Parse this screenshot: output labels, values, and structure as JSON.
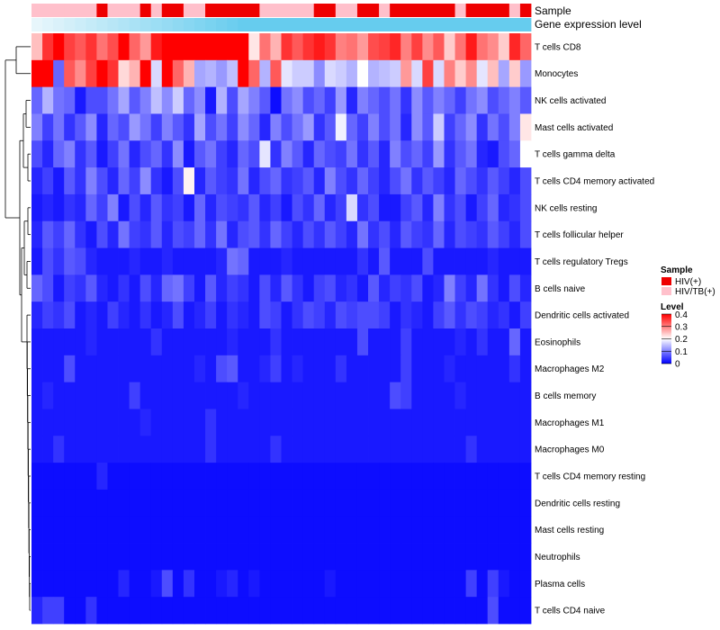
{
  "chart_data": {
    "type": "heatmap",
    "title": "",
    "annotations": [
      {
        "name": "Sample"
      },
      {
        "name": "Gene expression level"
      }
    ],
    "rows": [
      "T cells CD8",
      "Monocytes",
      "NK cells activated",
      "Mast cells activated",
      "T cells gamma delta",
      "T cells CD4 memory activated",
      "NK cells resting",
      "T cells follicular helper",
      "T cells regulatory  Tregs",
      "B cells naive",
      "Dendritic cells activated",
      "Eosinophils",
      "Macrophages M2",
      "B cells memory",
      "Macrophages M1",
      "Macrophages M0",
      "T cells CD4 memory resting",
      "Dendritic cells resting",
      "Mast cells resting",
      "Neutrophils",
      "Plasma cells",
      "T cells CD4 naive"
    ],
    "n_columns": 46,
    "sample_groups": [
      "HIV/TB(+)",
      "HIV/TB(+)",
      "HIV/TB(+)",
      "HIV/TB(+)",
      "HIV/TB(+)",
      "HIV/TB(+)",
      "HIV(+)",
      "HIV/TB(+)",
      "HIV/TB(+)",
      "HIV/TB(+)",
      "HIV(+)",
      "HIV/TB(+)",
      "HIV(+)",
      "HIV(+)",
      "HIV/TB(+)",
      "HIV/TB(+)",
      "HIV(+)",
      "HIV(+)",
      "HIV(+)",
      "HIV(+)",
      "HIV(+)",
      "HIV/TB(+)",
      "HIV/TB(+)",
      "HIV/TB(+)",
      "HIV/TB(+)",
      "HIV/TB(+)",
      "HIV(+)",
      "HIV(+)",
      "HIV/TB(+)",
      "HIV/TB(+)",
      "HIV(+)",
      "HIV(+)",
      "HIV/TB(+)",
      "HIV(+)",
      "HIV(+)",
      "HIV(+)",
      "HIV(+)",
      "HIV(+)",
      "HIV(+)",
      "HIV/TB(+)",
      "HIV(+)",
      "HIV(+)",
      "HIV(+)",
      "HIV(+)",
      "HIV/TB(+)",
      "HIV(+)"
    ],
    "sample_colors": {
      "HIV(+)": "#ee0000",
      "HIV/TB(+)": "#ffc0cb"
    },
    "expression_levels": [
      0.05,
      0.1,
      0.15,
      0.2,
      0.25,
      0.3,
      0.35,
      0.4,
      0.45,
      0.5,
      0.55,
      0.6,
      0.65,
      0.7,
      0.75,
      0.8,
      0.85,
      0.9,
      0.95,
      1.0,
      1.0,
      1.0,
      1.0,
      1.0,
      1.0,
      1.0,
      1.0,
      1.0,
      1.0,
      1.0,
      1.0,
      1.0,
      1.0,
      1.0,
      1.0,
      1.0,
      1.0,
      1.0,
      1.0,
      1.0,
      1.0,
      1.0,
      1.0,
      1.0,
      1.0,
      1.0
    ],
    "expression_color_range": [
      "#eef8fc",
      "#66ccee"
    ],
    "color_scale": {
      "min": 0,
      "max": 0.4,
      "colors": [
        "#0000ff",
        "#ffffff",
        "#ff0000"
      ],
      "ticks": [
        0.4,
        0.3,
        0.2,
        0.1,
        0
      ]
    },
    "values": [
      [
        0.25,
        0.36,
        0.4,
        0.35,
        0.33,
        0.36,
        0.31,
        0.34,
        0.4,
        0.32,
        0.28,
        0.38,
        0.4,
        0.4,
        0.4,
        0.4,
        0.4,
        0.4,
        0.4,
        0.4,
        0.22,
        0.31,
        0.26,
        0.36,
        0.33,
        0.36,
        0.38,
        0.36,
        0.3,
        0.31,
        0.28,
        0.34,
        0.35,
        0.37,
        0.3,
        0.35,
        0.29,
        0.33,
        0.24,
        0.31,
        0.38,
        0.31,
        0.29,
        0.24,
        0.37,
        0.32
      ],
      [
        0.4,
        0.4,
        0.08,
        0.33,
        0.29,
        0.35,
        0.4,
        0.36,
        0.23,
        0.26,
        0.4,
        0.17,
        0.4,
        0.32,
        0.26,
        0.13,
        0.14,
        0.12,
        0.15,
        0.4,
        0.32,
        0.14,
        0.33,
        0.18,
        0.16,
        0.16,
        0.11,
        0.17,
        0.16,
        0.14,
        0.2,
        0.14,
        0.15,
        0.16,
        0.28,
        0.17,
        0.35,
        0.17,
        0.3,
        0.24,
        0.29,
        0.18,
        0.25,
        0.13,
        0.24,
        0.12
      ],
      [
        0.08,
        0.14,
        0.09,
        0.08,
        0.02,
        0.06,
        0.06,
        0.09,
        0.13,
        0.07,
        0.1,
        0.15,
        0.11,
        0.16,
        0.08,
        0.11,
        0.02,
        0.14,
        0.06,
        0.13,
        0.1,
        0.07,
        0.01,
        0.09,
        0.11,
        0.06,
        0.08,
        0.05,
        0.12,
        0.03,
        0.1,
        0.08,
        0.06,
        0.09,
        0.04,
        0.11,
        0.07,
        0.1,
        0.08,
        0.05,
        0.09,
        0.11,
        0.06,
        0.08,
        0.1,
        0.07
      ],
      [
        0.1,
        0.05,
        0.09,
        0.04,
        0.07,
        0.11,
        0.03,
        0.08,
        0.06,
        0.12,
        0.09,
        0.05,
        0.1,
        0.07,
        0.04,
        0.13,
        0.06,
        0.09,
        0.05,
        0.11,
        0.08,
        0.03,
        0.1,
        0.06,
        0.09,
        0.12,
        0.04,
        0.07,
        0.19,
        0.08,
        0.05,
        0.1,
        0.06,
        0.09,
        0.03,
        0.11,
        0.07,
        0.16,
        0.05,
        0.08,
        0.11,
        0.04,
        0.09,
        0.06,
        0.1,
        0.22
      ],
      [
        0.06,
        0.03,
        0.08,
        0.1,
        0.04,
        0.07,
        0.02,
        0.05,
        0.09,
        0.03,
        0.06,
        0.08,
        0.04,
        0.11,
        0.02,
        0.07,
        0.09,
        0.05,
        0.03,
        0.08,
        0.06,
        0.18,
        0.04,
        0.1,
        0.07,
        0.03,
        0.08,
        0.06,
        0.05,
        0.09,
        0.04,
        0.07,
        0.03,
        0.1,
        0.06,
        0.08,
        0.05,
        0.12,
        0.04,
        0.07,
        0.09,
        0.03,
        0.02,
        0.06,
        0.08,
        0.2
      ],
      [
        0.03,
        0.05,
        0.02,
        0.07,
        0.04,
        0.1,
        0.06,
        0.03,
        0.08,
        0.05,
        0.11,
        0.04,
        0.02,
        0.06,
        0.21,
        0.03,
        0.07,
        0.05,
        0.04,
        0.09,
        0.03,
        0.06,
        0.08,
        0.04,
        0.05,
        0.07,
        0.03,
        0.1,
        0.06,
        0.04,
        0.08,
        0.05,
        0.03,
        0.06,
        0.09,
        0.04,
        0.07,
        0.05,
        0.03,
        0.08,
        0.06,
        0.04,
        0.07,
        0.05,
        0.03,
        0.06
      ],
      [
        0.02,
        0.03,
        0.02,
        0.04,
        0.03,
        0.08,
        0.05,
        0.1,
        0.02,
        0.06,
        0.03,
        0.07,
        0.04,
        0.05,
        0.02,
        0.08,
        0.03,
        0.06,
        0.05,
        0.04,
        0.07,
        0.03,
        0.05,
        0.02,
        0.06,
        0.04,
        0.08,
        0.03,
        0.05,
        0.17,
        0.04,
        0.06,
        0.02,
        0.02,
        0.05,
        0.07,
        0.03,
        0.1,
        0.04,
        0.06,
        0.02,
        0.05,
        0.08,
        0.03,
        0.04,
        0.06
      ],
      [
        0.03,
        0.07,
        0.05,
        0.08,
        0.04,
        0.02,
        0.06,
        0.03,
        0.09,
        0.05,
        0.04,
        0.07,
        0.03,
        0.06,
        0.05,
        0.08,
        0.04,
        0.09,
        0.03,
        0.06,
        0.07,
        0.04,
        0.08,
        0.05,
        0.03,
        0.06,
        0.04,
        0.07,
        0.05,
        0.03,
        0.09,
        0.04,
        0.06,
        0.03,
        0.07,
        0.05,
        0.04,
        0.08,
        0.03,
        0.06,
        0.05,
        0.04,
        0.07,
        0.05,
        0.03,
        0.06
      ],
      [
        0.02,
        0.06,
        0.04,
        0.07,
        0.06,
        0.03,
        0.02,
        0.02,
        0.02,
        0.03,
        0.02,
        0.02,
        0.03,
        0.02,
        0.02,
        0.02,
        0.02,
        0.03,
        0.09,
        0.08,
        0.02,
        0.02,
        0.02,
        0.03,
        0.02,
        0.02,
        0.02,
        0.02,
        0.02,
        0.02,
        0.04,
        0.02,
        0.07,
        0.02,
        0.02,
        0.02,
        0.06,
        0.02,
        0.02,
        0.02,
        0.02,
        0.02,
        0.03,
        0.02,
        0.02,
        0.02
      ],
      [
        0.08,
        0.06,
        0.02,
        0.05,
        0.04,
        0.07,
        0.03,
        0.02,
        0.04,
        0.02,
        0.06,
        0.03,
        0.08,
        0.09,
        0.05,
        0.02,
        0.07,
        0.03,
        0.05,
        0.04,
        0.02,
        0.06,
        0.03,
        0.07,
        0.04,
        0.02,
        0.05,
        0.06,
        0.03,
        0.04,
        0.02,
        0.07,
        0.03,
        0.05,
        0.04,
        0.06,
        0.02,
        0.03,
        0.1,
        0.05,
        0.03,
        0.09,
        0.04,
        0.02,
        0.06,
        0.03
      ],
      [
        0.03,
        0.05,
        0.04,
        0.06,
        0.02,
        0.03,
        0.02,
        0.05,
        0.03,
        0.02,
        0.04,
        0.02,
        0.03,
        0.06,
        0.02,
        0.03,
        0.05,
        0.02,
        0.04,
        0.03,
        0.02,
        0.06,
        0.05,
        0.02,
        0.04,
        0.06,
        0.05,
        0.03,
        0.06,
        0.05,
        0.06,
        0.06,
        0.05,
        0.02,
        0.04,
        0.03,
        0.02,
        0.05,
        0.07,
        0.04,
        0.06,
        0.05,
        0.03,
        0.04,
        0.02,
        0.05
      ],
      [
        0.02,
        0.02,
        0.02,
        0.02,
        0.02,
        0.03,
        0.02,
        0.02,
        0.02,
        0.02,
        0.02,
        0.04,
        0.02,
        0.02,
        0.02,
        0.02,
        0.02,
        0.02,
        0.03,
        0.02,
        0.02,
        0.02,
        0.04,
        0.02,
        0.02,
        0.02,
        0.02,
        0.02,
        0.02,
        0.02,
        0.06,
        0.02,
        0.02,
        0.02,
        0.05,
        0.02,
        0.02,
        0.02,
        0.02,
        0.03,
        0.02,
        0.04,
        0.02,
        0.02,
        0.08,
        0.02
      ],
      [
        0.02,
        0.02,
        0.02,
        0.06,
        0.02,
        0.02,
        0.02,
        0.02,
        0.02,
        0.02,
        0.02,
        0.02,
        0.02,
        0.02,
        0.02,
        0.03,
        0.02,
        0.06,
        0.07,
        0.02,
        0.02,
        0.03,
        0.05,
        0.02,
        0.03,
        0.02,
        0.02,
        0.02,
        0.04,
        0.02,
        0.02,
        0.02,
        0.02,
        0.02,
        0.05,
        0.02,
        0.02,
        0.02,
        0.03,
        0.02,
        0.02,
        0.02,
        0.02,
        0.02,
        0.04,
        0.02
      ],
      [
        0.02,
        0.03,
        0.02,
        0.02,
        0.02,
        0.02,
        0.02,
        0.02,
        0.02,
        0.05,
        0.02,
        0.02,
        0.02,
        0.02,
        0.02,
        0.02,
        0.02,
        0.02,
        0.02,
        0.03,
        0.02,
        0.02,
        0.02,
        0.02,
        0.02,
        0.02,
        0.02,
        0.02,
        0.02,
        0.02,
        0.02,
        0.02,
        0.02,
        0.06,
        0.05,
        0.02,
        0.02,
        0.02,
        0.02,
        0.03,
        0.02,
        0.02,
        0.02,
        0.02,
        0.02,
        0.02
      ],
      [
        0.02,
        0.02,
        0.02,
        0.02,
        0.02,
        0.02,
        0.02,
        0.02,
        0.02,
        0.02,
        0.03,
        0.02,
        0.02,
        0.02,
        0.02,
        0.02,
        0.04,
        0.02,
        0.02,
        0.02,
        0.02,
        0.02,
        0.02,
        0.02,
        0.02,
        0.02,
        0.02,
        0.02,
        0.02,
        0.02,
        0.02,
        0.02,
        0.02,
        0.02,
        0.02,
        0.02,
        0.02,
        0.02,
        0.02,
        0.02,
        0.02,
        0.02,
        0.02,
        0.02,
        0.02,
        0.02
      ],
      [
        0.02,
        0.02,
        0.04,
        0.02,
        0.02,
        0.02,
        0.02,
        0.02,
        0.02,
        0.02,
        0.02,
        0.02,
        0.02,
        0.02,
        0.02,
        0.02,
        0.04,
        0.02,
        0.02,
        0.02,
        0.02,
        0.02,
        0.04,
        0.02,
        0.02,
        0.02,
        0.02,
        0.02,
        0.02,
        0.02,
        0.02,
        0.02,
        0.02,
        0.02,
        0.02,
        0.02,
        0.02,
        0.02,
        0.02,
        0.02,
        0.04,
        0.02,
        0.02,
        0.02,
        0.02,
        0.02
      ],
      [
        0.01,
        0.01,
        0.01,
        0.01,
        0.01,
        0.01,
        0.03,
        0.01,
        0.01,
        0.01,
        0.01,
        0.01,
        0.01,
        0.01,
        0.01,
        0.01,
        0.01,
        0.01,
        0.01,
        0.01,
        0.01,
        0.01,
        0.01,
        0.01,
        0.01,
        0.01,
        0.01,
        0.01,
        0.01,
        0.01,
        0.01,
        0.01,
        0.01,
        0.01,
        0.01,
        0.01,
        0.01,
        0.01,
        0.01,
        0.01,
        0.01,
        0.01,
        0.01,
        0.01,
        0.01,
        0.01
      ],
      [
        0.01,
        0.01,
        0.01,
        0.01,
        0.01,
        0.01,
        0.01,
        0.01,
        0.01,
        0.01,
        0.01,
        0.01,
        0.01,
        0.01,
        0.01,
        0.01,
        0.01,
        0.01,
        0.01,
        0.01,
        0.01,
        0.01,
        0.01,
        0.01,
        0.01,
        0.01,
        0.01,
        0.01,
        0.01,
        0.01,
        0.01,
        0.01,
        0.01,
        0.01,
        0.01,
        0.01,
        0.01,
        0.01,
        0.01,
        0.01,
        0.01,
        0.01,
        0.01,
        0.01,
        0.01,
        0.01
      ],
      [
        0.01,
        0.01,
        0.01,
        0.01,
        0.01,
        0.01,
        0.01,
        0.01,
        0.01,
        0.01,
        0.01,
        0.01,
        0.01,
        0.01,
        0.01,
        0.01,
        0.01,
        0.01,
        0.01,
        0.01,
        0.01,
        0.01,
        0.01,
        0.01,
        0.01,
        0.01,
        0.01,
        0.01,
        0.01,
        0.01,
        0.01,
        0.01,
        0.01,
        0.01,
        0.01,
        0.01,
        0.01,
        0.01,
        0.01,
        0.01,
        0.01,
        0.01,
        0.01,
        0.01,
        0.01,
        0.01
      ],
      [
        0.01,
        0.01,
        0.01,
        0.01,
        0.01,
        0.01,
        0.01,
        0.01,
        0.01,
        0.01,
        0.01,
        0.01,
        0.01,
        0.01,
        0.01,
        0.01,
        0.01,
        0.01,
        0.01,
        0.01,
        0.01,
        0.01,
        0.01,
        0.01,
        0.01,
        0.01,
        0.01,
        0.01,
        0.01,
        0.01,
        0.01,
        0.01,
        0.01,
        0.01,
        0.01,
        0.01,
        0.01,
        0.01,
        0.01,
        0.01,
        0.01,
        0.01,
        0.01,
        0.01,
        0.01,
        0.01
      ],
      [
        0.01,
        0.01,
        0.01,
        0.01,
        0.01,
        0.01,
        0.01,
        0.01,
        0.03,
        0.01,
        0.01,
        0.02,
        0.06,
        0.01,
        0.04,
        0.01,
        0.01,
        0.02,
        0.03,
        0.01,
        0.02,
        0.01,
        0.01,
        0.01,
        0.01,
        0.01,
        0.01,
        0.02,
        0.01,
        0.01,
        0.01,
        0.01,
        0.01,
        0.01,
        0.01,
        0.01,
        0.01,
        0.01,
        0.01,
        0.01,
        0.05,
        0.01,
        0.05,
        0.02,
        0.01,
        0.01
      ],
      [
        0.03,
        0.05,
        0.05,
        0.01,
        0.01,
        0.04,
        0.01,
        0.01,
        0.01,
        0.01,
        0.01,
        0.01,
        0.01,
        0.01,
        0.01,
        0.01,
        0.01,
        0.01,
        0.01,
        0.01,
        0.01,
        0.01,
        0.01,
        0.01,
        0.01,
        0.01,
        0.01,
        0.01,
        0.01,
        0.01,
        0.01,
        0.01,
        0.01,
        0.01,
        0.01,
        0.01,
        0.01,
        0.01,
        0.01,
        0.01,
        0.01,
        0.01,
        0.06,
        0.01,
        0.01,
        0.01
      ]
    ]
  },
  "legend": {
    "sample_title": "Sample",
    "sample_items": [
      {
        "label": "HIV(+)",
        "color": "#ee0000"
      },
      {
        "label": "HIV/TB(+)",
        "color": "#ffc0cb"
      }
    ],
    "level_title": "Level",
    "level_ticks": [
      "0.4",
      "0.3",
      "0.2",
      "0.1",
      "0"
    ]
  }
}
